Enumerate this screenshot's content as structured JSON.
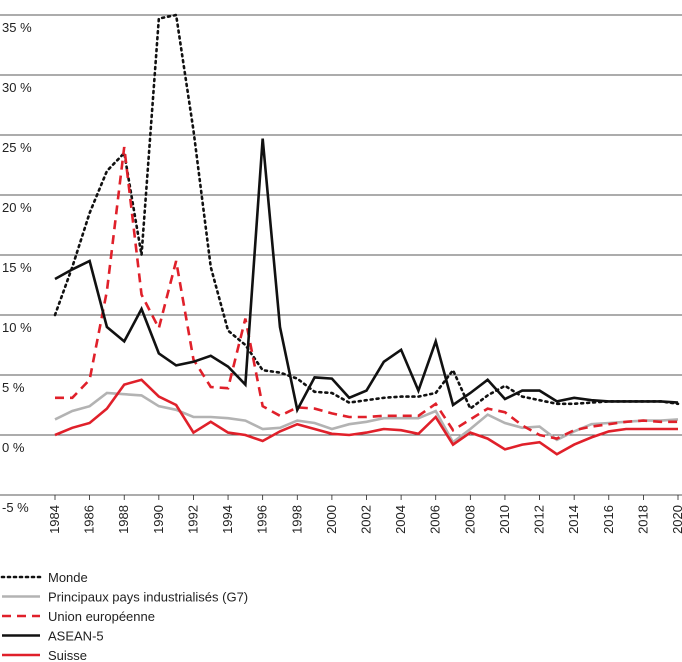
{
  "chart_data": {
    "type": "line",
    "x": [
      1984,
      1985,
      1986,
      1987,
      1988,
      1989,
      1990,
      1991,
      1992,
      1993,
      1994,
      1995,
      1996,
      1997,
      1998,
      1999,
      2000,
      2001,
      2002,
      2003,
      2004,
      2005,
      2006,
      2007,
      2008,
      2009,
      2010,
      2011,
      2012,
      2013,
      2014,
      2015,
      2016,
      2017,
      2018,
      2019,
      2020
    ],
    "xlim": [
      1984,
      2020
    ],
    "xticks": [
      1984,
      1986,
      1988,
      1990,
      1992,
      1994,
      1996,
      1998,
      2000,
      2002,
      2004,
      2006,
      2008,
      2010,
      2012,
      2014,
      2016,
      2018,
      2020
    ],
    "ylim": [
      -5,
      35
    ],
    "yticks": [
      {
        "value": -5,
        "label": "-5 %"
      },
      {
        "value": 0,
        "label": "0 %"
      },
      {
        "value": 5,
        "label": "5 %"
      },
      {
        "value": 10,
        "label": "10 %"
      },
      {
        "value": 15,
        "label": "15 %"
      },
      {
        "value": 20,
        "label": "20 %"
      },
      {
        "value": 25,
        "label": "25 %"
      },
      {
        "value": 30,
        "label": "30 %"
      },
      {
        "value": 35,
        "label": "35 %"
      }
    ],
    "grid": true,
    "legend": "bottom-left",
    "series": [
      {
        "name": "Monde",
        "color": "#111111",
        "dash": "dotted",
        "values": [
          10,
          14,
          18.5,
          22,
          23.5,
          15,
          34.7,
          35,
          25.4,
          14,
          8.7,
          7.5,
          5.4,
          5.2,
          4.7,
          3.6,
          3.5,
          2.7,
          2.9,
          3.1,
          3.2,
          3.2,
          3.5,
          5.4,
          2.2,
          3.3,
          4.1,
          3.2,
          2.9,
          2.6,
          2.6,
          2.7,
          2.8,
          2.8,
          2.8,
          2.8,
          2.6
        ]
      },
      {
        "name": "Principaux pays industrialisés (G7)",
        "color": "#b3b3b3",
        "dash": "solid",
        "values": [
          1.3,
          2,
          2.4,
          3.5,
          3.4,
          3.3,
          2.4,
          2.1,
          1.5,
          1.5,
          1.4,
          1.2,
          0.5,
          0.6,
          1.2,
          1.0,
          0.5,
          0.9,
          1.1,
          1.4,
          1.4,
          1.4,
          2.0,
          -0.6,
          0.5,
          1.7,
          1.0,
          0.6,
          0.7,
          -0.4,
          0.3,
          0.9,
          1.0,
          1.1,
          1.2,
          1.2,
          1.3
        ]
      },
      {
        "name": "Union européenne",
        "color": "#e0202a",
        "dash": "dashed",
        "values": [
          3.1,
          3.1,
          4.6,
          12,
          24,
          11.7,
          8.9,
          14.5,
          6.3,
          4,
          3.9,
          9.7,
          2.4,
          1.6,
          2.3,
          2.2,
          1.8,
          1.5,
          1.5,
          1.6,
          1.6,
          1.6,
          2.6,
          0.4,
          1.3,
          2.2,
          1.9,
          0.8,
          0,
          -0.3,
          0.4,
          0.7,
          0.9,
          1.1,
          1.2,
          1.1,
          1.1
        ]
      },
      {
        "name": "ASEAN-5",
        "color": "#111111",
        "dash": "solid",
        "values": [
          13,
          13.8,
          14.5,
          9,
          7.8,
          10.5,
          6.8,
          5.8,
          6.1,
          6.6,
          5.7,
          4.2,
          24.7,
          9,
          2.1,
          4.8,
          4.7,
          3.1,
          3.7,
          6.1,
          7.1,
          3.7,
          7.8,
          2.5,
          3.5,
          4.6,
          3,
          3.7,
          3.7,
          2.8,
          3.1,
          2.9,
          2.8,
          2.8,
          2.8,
          2.8,
          2.7
        ]
      },
      {
        "name": "Suisse",
        "color": "#e0202a",
        "dash": "solid",
        "values": [
          0,
          0.6,
          1,
          2.2,
          4.2,
          4.6,
          3.2,
          2.5,
          0.2,
          1.1,
          0.2,
          0,
          -0.5,
          0.3,
          0.9,
          0.5,
          0.1,
          0,
          0.2,
          0.5,
          0.4,
          0.1,
          1.5,
          -0.8,
          0.2,
          -0.3,
          -1.2,
          -0.8,
          -0.6,
          -1.6,
          -0.8,
          -0.2,
          0.3,
          0.5,
          0.5,
          0.5,
          0.5
        ]
      }
    ]
  }
}
